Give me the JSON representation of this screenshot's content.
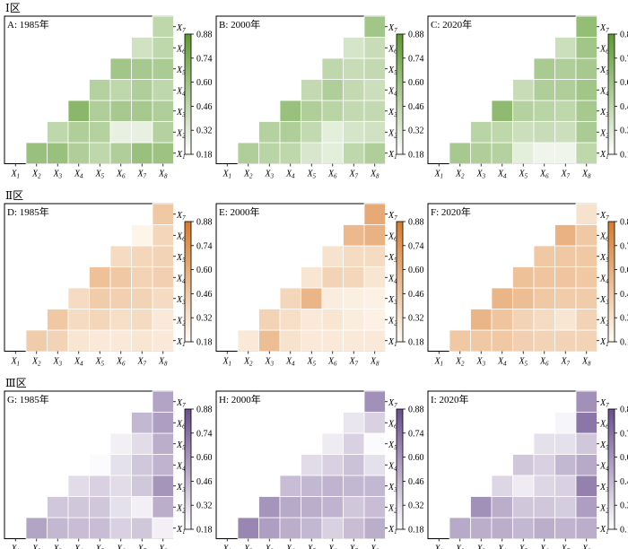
{
  "zones": [
    {
      "label": "Ⅰ区",
      "colors": [
        "#ffffff",
        "#5c9a2e"
      ],
      "panels": [
        {
          "title": "A: 1985年"
        },
        {
          "title": "B: 2000年"
        },
        {
          "title": "C: 2020年"
        }
      ]
    },
    {
      "label": "Ⅱ区",
      "colors": [
        "#fffcf5",
        "#d97a2b"
      ],
      "panels": [
        {
          "title": "D: 1985年"
        },
        {
          "title": "E: 2000年"
        },
        {
          "title": "F: 2020年"
        }
      ]
    },
    {
      "label": "Ⅲ区",
      "colors": [
        "#ffffff",
        "#6a4e8e"
      ],
      "panels": [
        {
          "title": "G: 1985年"
        },
        {
          "title": "H: 2000年"
        },
        {
          "title": "I: 2020年"
        }
      ]
    }
  ],
  "chart_data": {
    "type": "heatmap",
    "x_categories": [
      "X1",
      "X2",
      "X3",
      "X4",
      "X5",
      "X6",
      "X7",
      "X8"
    ],
    "y_categories": [
      "X1",
      "X2",
      "X3",
      "X4",
      "X5",
      "X6",
      "X7"
    ],
    "colorbar_ticks": [
      0.88,
      0.74,
      0.6,
      0.46,
      0.32,
      0.18
    ],
    "clim": [
      0.18,
      0.88
    ],
    "note": "Lower-triangular correlation heatmaps; row r (X1..X7) has cells for columns X(r+1)..X8.",
    "panels": [
      {
        "id": "A",
        "values": [
          [
            0.62,
            0.62,
            0.52,
            0.46,
            0.52,
            0.62,
            0.6
          ],
          [
            0.46,
            0.52,
            0.5,
            0.28,
            0.28,
            0.5
          ],
          [
            0.68,
            0.52,
            0.56,
            0.56,
            0.52
          ],
          [
            0.5,
            0.46,
            0.52,
            0.46
          ],
          [
            0.58,
            0.56,
            0.54
          ],
          [
            0.38,
            0.46
          ],
          [
            0.46
          ]
        ]
      },
      {
        "id": "B",
        "values": [
          [
            0.52,
            0.48,
            0.46,
            0.35,
            0.3,
            0.46,
            0.52
          ],
          [
            0.5,
            0.52,
            0.44,
            0.3,
            0.36,
            0.38
          ],
          [
            0.62,
            0.52,
            0.48,
            0.44,
            0.44
          ],
          [
            0.44,
            0.52,
            0.44,
            0.4
          ],
          [
            0.46,
            0.42,
            0.44
          ],
          [
            0.36,
            0.42
          ],
          [
            0.58
          ]
        ]
      },
      {
        "id": "C",
        "values": [
          [
            0.56,
            0.52,
            0.5,
            0.3,
            0.25,
            0.25,
            0.46
          ],
          [
            0.48,
            0.46,
            0.4,
            0.42,
            0.4,
            0.54
          ],
          [
            0.66,
            0.5,
            0.48,
            0.46,
            0.56
          ],
          [
            0.42,
            0.52,
            0.52,
            0.58
          ],
          [
            0.55,
            0.52,
            0.56
          ],
          [
            0.4,
            0.58
          ],
          [
            0.64
          ]
        ]
      },
      {
        "id": "D",
        "values": [
          [
            0.44,
            0.4,
            0.3,
            0.28,
            0.28,
            0.3,
            0.28
          ],
          [
            0.46,
            0.36,
            0.38,
            0.34,
            0.36,
            0.28
          ],
          [
            0.36,
            0.44,
            0.42,
            0.4,
            0.36
          ],
          [
            0.5,
            0.46,
            0.4,
            0.42
          ],
          [
            0.36,
            0.38,
            0.4
          ],
          [
            0.22,
            0.38
          ],
          [
            0.46
          ]
        ]
      },
      {
        "id": "E",
        "values": [
          [
            0.28,
            0.52,
            0.32,
            0.28,
            0.28,
            0.28,
            0.28
          ],
          [
            0.4,
            0.34,
            0.28,
            0.3,
            0.26,
            0.24
          ],
          [
            0.38,
            0.56,
            0.26,
            0.25,
            0.24
          ],
          [
            0.3,
            0.4,
            0.38,
            0.3
          ],
          [
            0.32,
            0.36,
            0.36
          ],
          [
            0.54,
            0.58
          ],
          [
            0.62
          ]
        ]
      },
      {
        "id": "F",
        "values": [
          [
            0.46,
            0.46,
            0.46,
            0.42,
            0.4,
            0.4,
            0.4
          ],
          [
            0.56,
            0.48,
            0.4,
            0.36,
            0.3,
            0.4
          ],
          [
            0.56,
            0.52,
            0.46,
            0.44,
            0.44
          ],
          [
            0.5,
            0.48,
            0.48,
            0.46
          ],
          [
            0.46,
            0.46,
            0.46
          ],
          [
            0.58,
            0.46
          ],
          [
            0.32
          ]
        ]
      },
      {
        "id": "G",
        "values": [
          [
            0.54,
            0.46,
            0.44,
            0.44,
            0.36,
            0.4,
            0.24
          ],
          [
            0.4,
            0.4,
            0.4,
            0.3,
            0.24,
            0.5
          ],
          [
            0.32,
            0.36,
            0.32,
            0.4,
            0.6
          ],
          [
            0.2,
            0.3,
            0.4,
            0.48
          ],
          [
            0.24,
            0.32,
            0.5
          ],
          [
            0.46,
            0.56
          ],
          [
            0.54
          ]
        ]
      },
      {
        "id": "H",
        "values": [
          [
            0.66,
            0.56,
            0.5,
            0.46,
            0.36,
            0.44,
            0.5
          ],
          [
            0.6,
            0.52,
            0.5,
            0.48,
            0.4,
            0.44
          ],
          [
            0.44,
            0.46,
            0.48,
            0.46,
            0.46
          ],
          [
            0.32,
            0.36,
            0.42,
            0.3
          ],
          [
            0.26,
            0.36,
            0.2
          ],
          [
            0.28,
            0.36
          ],
          [
            0.62
          ]
        ]
      },
      {
        "id": "I",
        "values": [
          [
            0.52,
            0.5,
            0.5,
            0.46,
            0.5,
            0.48,
            0.5
          ],
          [
            0.62,
            0.5,
            0.4,
            0.4,
            0.38,
            0.56
          ],
          [
            0.34,
            0.26,
            0.34,
            0.36,
            0.68
          ],
          [
            0.4,
            0.36,
            0.46,
            0.52
          ],
          [
            0.3,
            0.3,
            0.4
          ],
          [
            0.22,
            0.72
          ],
          [
            0.62
          ]
        ]
      }
    ]
  }
}
